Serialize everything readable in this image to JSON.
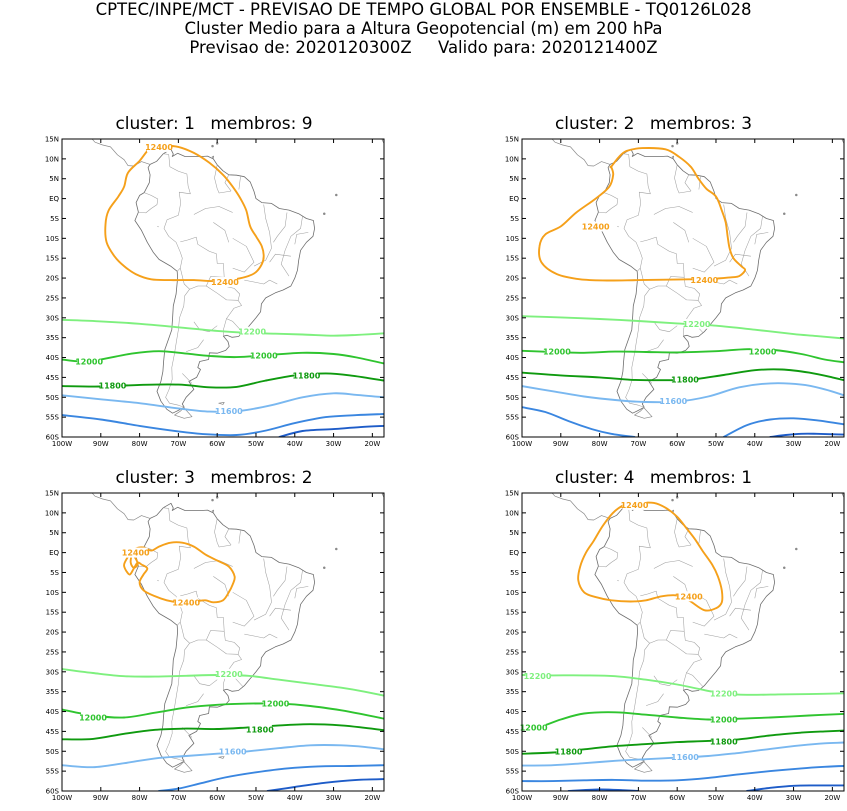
{
  "header": {
    "line1": "CPTEC/INPE/MCT - PREVISAO DE TEMPO GLOBAL POR ENSEMBLE - TQ0126L028",
    "line2": "Cluster Medio para a Altura Geopotencial (m) em 200 hPa",
    "line3": "Previsao de: 2020120300Z     Valido para: 2020121400Z"
  },
  "lat_labels": [
    "15N",
    "10N",
    "5N",
    "EQ",
    "5S",
    "10S",
    "15S",
    "20S",
    "25S",
    "30S",
    "35S",
    "40S",
    "45S",
    "50S",
    "55S",
    "60S"
  ],
  "lon_labels": [
    "100W",
    "90W",
    "80W",
    "70W",
    "60W",
    "50W",
    "40W",
    "30W",
    "20W"
  ],
  "extent": {
    "lon": [
      -100,
      -17
    ],
    "lat": [
      -60,
      15
    ]
  },
  "contour_colors": {
    "12400": "#f5a01a",
    "12200": "#7ef07e",
    "12000": "#2fc42f",
    "11800": "#0f9a0f",
    "11600": "#7ab8f0",
    "11400": "#3a86e0",
    "11200": "#1e5cc8"
  },
  "panels": [
    {
      "title_cluster": "cluster: 1",
      "title_members": "membros: 9",
      "labels": [
        {
          "text": "12400",
          "lon": -75,
          "lat": 13,
          "color": "12400"
        },
        {
          "text": "12400",
          "lon": -58,
          "lat": -21,
          "color": "12400"
        },
        {
          "text": "12200",
          "lon": -51,
          "lat": -33.5,
          "color": "12200"
        },
        {
          "text": "12000",
          "lon": -93,
          "lat": -41,
          "color": "12000"
        },
        {
          "text": "12000",
          "lon": -48,
          "lat": -39.5,
          "color": "12000"
        },
        {
          "text": "11800",
          "lon": -87,
          "lat": -47,
          "color": "11800"
        },
        {
          "text": "11800",
          "lon": -37,
          "lat": -44.5,
          "color": "11800"
        },
        {
          "text": "11600",
          "lon": -57,
          "lat": -53.5,
          "color": "11600"
        }
      ]
    },
    {
      "title_cluster": "cluster: 2",
      "title_members": "membros: 3",
      "labels": [
        {
          "text": "12400",
          "lon": -81,
          "lat": -7,
          "color": "12400"
        },
        {
          "text": "12400",
          "lon": -53,
          "lat": -20.5,
          "color": "12400"
        },
        {
          "text": "12200",
          "lon": -55,
          "lat": -31.5,
          "color": "12200"
        },
        {
          "text": "12000",
          "lon": -91,
          "lat": -38.5,
          "color": "12000"
        },
        {
          "text": "12000",
          "lon": -38,
          "lat": -38.5,
          "color": "12000"
        },
        {
          "text": "11800",
          "lon": -58,
          "lat": -45.5,
          "color": "11800"
        },
        {
          "text": "11600",
          "lon": -61,
          "lat": -51,
          "color": "11600"
        }
      ]
    },
    {
      "title_cluster": "cluster: 3",
      "title_members": "membros: 2",
      "labels": [
        {
          "text": "12400",
          "lon": -81,
          "lat": 0,
          "color": "12400"
        },
        {
          "text": "12400",
          "lon": -68,
          "lat": -12.5,
          "color": "12400"
        },
        {
          "text": "12200",
          "lon": -57,
          "lat": -30.5,
          "color": "12200"
        },
        {
          "text": "12000",
          "lon": -92,
          "lat": -41.5,
          "color": "12000"
        },
        {
          "text": "12000",
          "lon": -45,
          "lat": -38,
          "color": "12000"
        },
        {
          "text": "11800",
          "lon": -49,
          "lat": -44.5,
          "color": "11800"
        },
        {
          "text": "11600",
          "lon": -56,
          "lat": -50,
          "color": "11600"
        }
      ]
    },
    {
      "title_cluster": "cluster: 4",
      "title_members": "membros: 1",
      "labels": [
        {
          "text": "12400",
          "lon": -71,
          "lat": 12,
          "color": "12400"
        },
        {
          "text": "12400",
          "lon": -57,
          "lat": -11,
          "color": "12400"
        },
        {
          "text": "12200",
          "lon": -96,
          "lat": -31,
          "color": "12200"
        },
        {
          "text": "12200",
          "lon": -48,
          "lat": -35.5,
          "color": "12200"
        },
        {
          "text": "12000",
          "lon": -97,
          "lat": -44,
          "color": "12000"
        },
        {
          "text": "12000",
          "lon": -48,
          "lat": -42,
          "color": "12000"
        },
        {
          "text": "11800",
          "lon": -88,
          "lat": -50,
          "color": "11800"
        },
        {
          "text": "11800",
          "lon": -48,
          "lat": -47.5,
          "color": "11800"
        },
        {
          "text": "11600",
          "lon": -58,
          "lat": -51.5,
          "color": "11600"
        }
      ]
    }
  ]
}
